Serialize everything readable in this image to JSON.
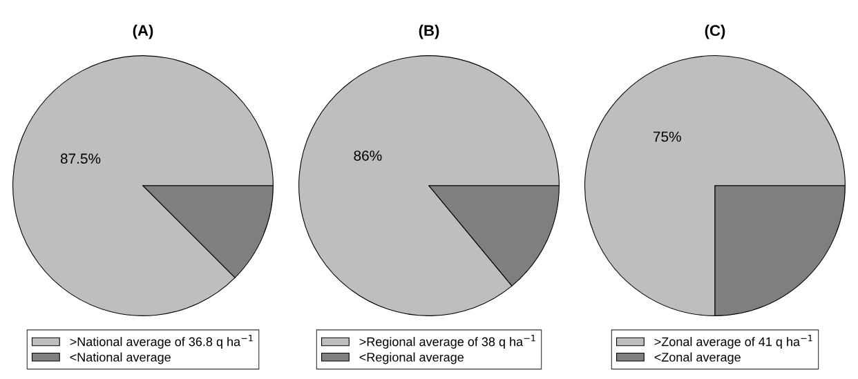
{
  "chart_data": [
    {
      "type": "pie",
      "title": "(A)",
      "categories": [
        ">National average of 36.8 q ha$^{−1}$",
        "<National average"
      ],
      "values": [
        87.5,
        12.5
      ],
      "colors": [
        "#bebebe",
        "#7f7f7f"
      ],
      "value_labels": [
        "87.5%",
        null
      ],
      "legend": "bottom"
    },
    {
      "type": "pie",
      "title": "(B)",
      "categories": [
        ">Regional average of 38 q ha$^{−1}$",
        "<Regional average"
      ],
      "values": [
        86,
        14
      ],
      "colors": [
        "#bebebe",
        "#7f7f7f"
      ],
      "value_labels": [
        "86%",
        null
      ],
      "legend": "bottom"
    },
    {
      "type": "pie",
      "title": "(C)",
      "categories": [
        ">Zonal average of 41 q ha$^{−1}$",
        "<Zonal average"
      ],
      "values": [
        75,
        25
      ],
      "colors": [
        "#bebebe",
        "#7f7f7f"
      ],
      "value_labels": [
        "75%",
        null
      ],
      "legend": "bottom"
    }
  ]
}
